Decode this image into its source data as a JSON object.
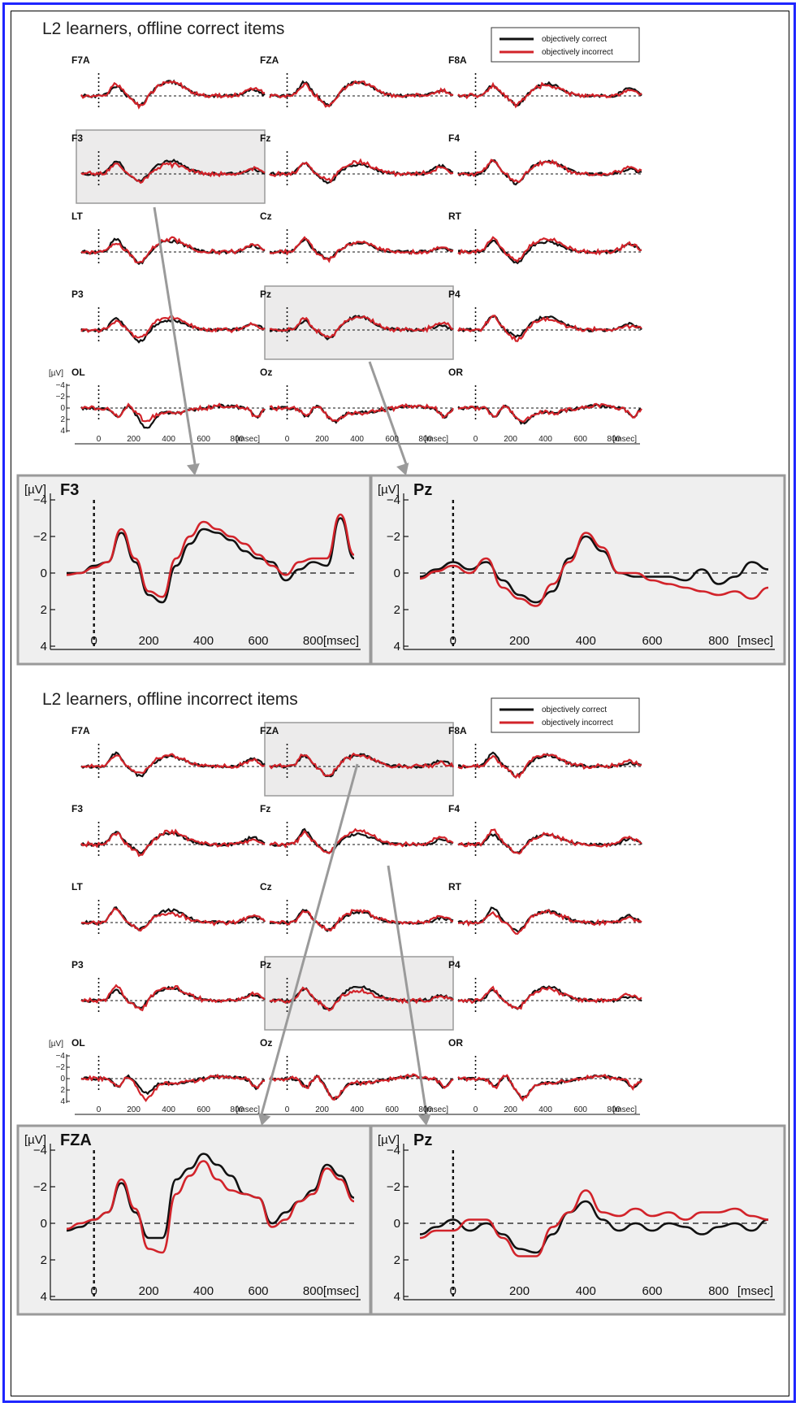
{
  "figure": {
    "colors": {
      "correct": "#111111",
      "incorrect": "#d2232a",
      "highlight_fill": "#ecebeb",
      "highlight_stroke": "#9a9a9a",
      "zoom_fill": "#efefef",
      "arrow": "#9a9a9a",
      "border": "#1f26ff"
    },
    "axis": {
      "unit_label": "[µV]",
      "time_unit": "[msec]",
      "x_ticks": [
        0,
        200,
        400,
        600,
        800
      ],
      "y_ticks": [
        -4,
        -2,
        0,
        2,
        4
      ],
      "y_tick_labels": [
        "−4",
        "−2",
        "0",
        "2",
        "4"
      ],
      "y_inverted": true
    }
  },
  "panels": [
    {
      "title": "L2 learners, offline correct items",
      "legend": [
        {
          "label": "objectively correct",
          "color": "#111111"
        },
        {
          "label": "objectively incorrect",
          "color": "#d2232a"
        }
      ],
      "grid": [
        [
          "F7A",
          "FZA",
          "F8A"
        ],
        [
          "F3",
          "Fz",
          "F4"
        ],
        [
          "LT",
          "Cz",
          "RT"
        ],
        [
          "P3",
          "Pz",
          "P4"
        ],
        [
          "OL",
          "Oz",
          "OR"
        ]
      ],
      "highlighted": [
        "F3",
        "Pz"
      ],
      "zoom": [
        "F3",
        "Pz"
      ]
    },
    {
      "title": "L2 learners, offline incorrect items",
      "legend": [
        {
          "label": "objectively correct",
          "color": "#111111"
        },
        {
          "label": "objectively incorrect",
          "color": "#d2232a"
        }
      ],
      "grid": [
        [
          "F7A",
          "FZA",
          "F8A"
        ],
        [
          "F3",
          "Fz",
          "F4"
        ],
        [
          "LT",
          "Cz",
          "RT"
        ],
        [
          "P3",
          "Pz",
          "P4"
        ],
        [
          "OL",
          "Oz",
          "OR"
        ]
      ],
      "highlighted": [
        "FZA",
        "Pz"
      ],
      "zoom": [
        "FZA",
        "Pz"
      ]
    }
  ],
  "chart_data": [
    {
      "type": "line",
      "title": "L2 learners, offline correct items",
      "channel": "F3",
      "ylabel": "[µV]",
      "xlabel": "[msec]",
      "xlim": [
        -100,
        950
      ],
      "ylim": [
        4,
        -4
      ],
      "x": [
        -100,
        -50,
        0,
        50,
        100,
        150,
        200,
        250,
        300,
        350,
        400,
        450,
        500,
        550,
        600,
        650,
        700,
        750,
        800,
        850,
        900,
        950
      ],
      "series": [
        {
          "name": "objectively correct",
          "values": [
            0.0,
            0.0,
            -0.4,
            -0.6,
            -2.2,
            -0.6,
            1.2,
            1.6,
            -0.4,
            -1.6,
            -2.4,
            -2.2,
            -1.8,
            -1.2,
            -0.8,
            -0.6,
            0.4,
            -0.2,
            -0.6,
            -0.4,
            -3.0,
            -0.8
          ]
        },
        {
          "name": "objectively incorrect",
          "values": [
            0.1,
            0.0,
            -0.3,
            -0.6,
            -2.4,
            -0.8,
            1.0,
            1.3,
            -0.8,
            -2.0,
            -2.8,
            -2.4,
            -2.0,
            -1.6,
            -1.0,
            -0.4,
            0.1,
            -0.6,
            -0.8,
            -0.8,
            -3.2,
            -1.0
          ]
        }
      ]
    },
    {
      "type": "line",
      "title": "L2 learners, offline correct items",
      "channel": "Pz",
      "ylabel": "[µV]",
      "xlabel": "[msec]",
      "xlim": [
        -100,
        950
      ],
      "ylim": [
        4,
        -4
      ],
      "x": [
        -100,
        -50,
        0,
        50,
        100,
        150,
        200,
        250,
        300,
        350,
        400,
        450,
        500,
        550,
        600,
        650,
        700,
        750,
        800,
        850,
        900,
        950
      ],
      "series": [
        {
          "name": "objectively correct",
          "values": [
            0.2,
            -0.2,
            -0.6,
            -0.2,
            -0.6,
            0.4,
            1.2,
            1.6,
            1.0,
            -0.8,
            -2.0,
            -1.2,
            0.0,
            0.2,
            0.2,
            0.2,
            0.4,
            -0.2,
            0.6,
            0.2,
            -0.6,
            -0.2
          ]
        },
        {
          "name": "objectively incorrect",
          "values": [
            0.3,
            -0.1,
            -0.4,
            0.0,
            -0.8,
            0.8,
            1.4,
            1.8,
            0.6,
            -0.6,
            -2.2,
            -1.4,
            0.0,
            0.0,
            0.4,
            0.6,
            0.8,
            1.0,
            1.2,
            1.0,
            1.4,
            0.8
          ]
        }
      ]
    },
    {
      "type": "line",
      "title": "L2 learners, offline incorrect items",
      "channel": "FZA",
      "ylabel": "[µV]",
      "xlabel": "[msec]",
      "xlim": [
        -100,
        950
      ],
      "ylim": [
        4,
        -4
      ],
      "x": [
        -100,
        -50,
        0,
        50,
        100,
        150,
        200,
        250,
        300,
        350,
        400,
        450,
        500,
        550,
        600,
        650,
        700,
        750,
        800,
        850,
        900,
        950
      ],
      "series": [
        {
          "name": "objectively correct",
          "values": [
            0.4,
            0.2,
            -0.2,
            -0.6,
            -2.2,
            -0.6,
            0.8,
            0.8,
            -2.4,
            -3.0,
            -3.8,
            -3.2,
            -2.6,
            -1.6,
            -1.4,
            0.0,
            -0.6,
            -1.2,
            -1.8,
            -3.2,
            -2.6,
            -1.4
          ]
        },
        {
          "name": "objectively incorrect",
          "values": [
            0.3,
            0.0,
            -0.2,
            -0.6,
            -2.4,
            -0.8,
            1.4,
            1.6,
            -1.6,
            -2.6,
            -3.4,
            -2.4,
            -1.8,
            -1.6,
            -1.4,
            0.2,
            -0.2,
            -1.2,
            -1.6,
            -3.0,
            -2.4,
            -1.2
          ]
        }
      ]
    },
    {
      "type": "line",
      "title": "L2 learners, offline incorrect items",
      "channel": "Pz",
      "ylabel": "[µV]",
      "xlabel": "[msec]",
      "xlim": [
        -100,
        950
      ],
      "ylim": [
        4,
        -4
      ],
      "x": [
        -100,
        -50,
        0,
        50,
        100,
        150,
        200,
        250,
        300,
        350,
        400,
        450,
        500,
        550,
        600,
        650,
        700,
        750,
        800,
        850,
        900,
        950
      ],
      "series": [
        {
          "name": "objectively correct",
          "values": [
            0.6,
            0.2,
            -0.2,
            0.4,
            0.0,
            0.6,
            1.4,
            1.6,
            0.6,
            -0.6,
            -1.2,
            -0.2,
            0.4,
            0.0,
            0.4,
            0.0,
            0.2,
            0.6,
            0.2,
            0.0,
            0.4,
            -0.2
          ]
        },
        {
          "name": "objectively incorrect",
          "values": [
            0.8,
            0.4,
            0.4,
            -0.2,
            -0.2,
            0.8,
            1.8,
            1.8,
            0.2,
            -0.6,
            -1.8,
            -0.6,
            -0.4,
            -0.8,
            -0.4,
            -0.6,
            -0.2,
            -0.6,
            -0.6,
            -0.8,
            -0.4,
            -0.2
          ]
        }
      ]
    }
  ]
}
